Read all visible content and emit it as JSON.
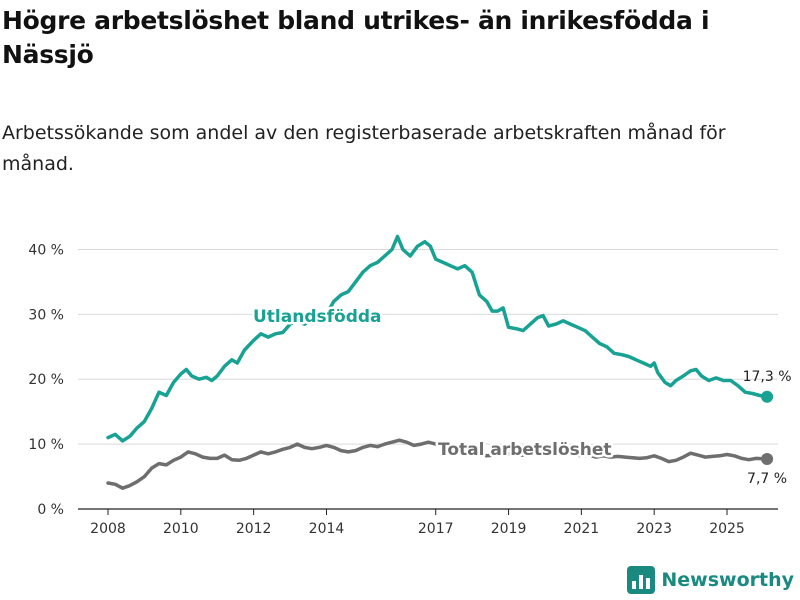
{
  "header": {
    "title": "Högre arbetslöshet bland utrikes- än inrikesfödda i Nässjö",
    "subtitle": "Arbetssökande som andel av den registerbaserade arbetskraften månad för månad."
  },
  "brand": {
    "name": "Newsworthy",
    "color": "#1a8a80"
  },
  "chart_data": {
    "type": "line",
    "title": "Högre arbetslöshet bland utrikes- än inrikesfödda i Nässjö",
    "subtitle": "Arbetssökande som andel av den registerbaserade arbetskraften månad för månad.",
    "xlabel": "",
    "ylabel": "",
    "xlim": [
      2008,
      2026.4
    ],
    "ylim": [
      0,
      43
    ],
    "x_ticks": [
      2008,
      2010,
      2012,
      2014,
      2017,
      2019,
      2021,
      2023,
      2025
    ],
    "y_ticks": [
      {
        "value": 0,
        "label": "0 %"
      },
      {
        "value": 10,
        "label": "10 %"
      },
      {
        "value": 20,
        "label": "20 %"
      },
      {
        "value": 30,
        "label": "30 %"
      },
      {
        "value": 40,
        "label": "40 %"
      }
    ],
    "grid": "horizontal",
    "series": [
      {
        "name": "Utlandsfödda",
        "label": "Utlandsfödda",
        "color": "#17a293",
        "end_label": "17,3 %",
        "points": [
          [
            2008.0,
            11.0
          ],
          [
            2008.2,
            11.5
          ],
          [
            2008.4,
            10.5
          ],
          [
            2008.6,
            11.2
          ],
          [
            2008.8,
            12.5
          ],
          [
            2009.0,
            13.5
          ],
          [
            2009.2,
            15.5
          ],
          [
            2009.4,
            18.0
          ],
          [
            2009.6,
            17.5
          ],
          [
            2009.8,
            19.5
          ],
          [
            2010.0,
            20.8
          ],
          [
            2010.15,
            21.5
          ],
          [
            2010.3,
            20.5
          ],
          [
            2010.5,
            20.0
          ],
          [
            2010.7,
            20.3
          ],
          [
            2010.85,
            19.8
          ],
          [
            2011.0,
            20.5
          ],
          [
            2011.2,
            22.0
          ],
          [
            2011.4,
            23.0
          ],
          [
            2011.55,
            22.5
          ],
          [
            2011.75,
            24.5
          ],
          [
            2012.0,
            26.0
          ],
          [
            2012.2,
            27.0
          ],
          [
            2012.4,
            26.5
          ],
          [
            2012.6,
            27.0
          ],
          [
            2012.8,
            27.2
          ],
          [
            2013.0,
            28.5
          ],
          [
            2013.2,
            29.0
          ],
          [
            2013.4,
            28.5
          ],
          [
            2013.6,
            29.2
          ],
          [
            2013.8,
            28.8
          ],
          [
            2014.0,
            30.0
          ],
          [
            2014.2,
            32.0
          ],
          [
            2014.4,
            33.0
          ],
          [
            2014.6,
            33.5
          ],
          [
            2014.8,
            35.0
          ],
          [
            2015.0,
            36.5
          ],
          [
            2015.2,
            37.5
          ],
          [
            2015.4,
            38.0
          ],
          [
            2015.6,
            39.0
          ],
          [
            2015.8,
            40.0
          ],
          [
            2015.95,
            42.0
          ],
          [
            2016.1,
            40.0
          ],
          [
            2016.3,
            39.0
          ],
          [
            2016.5,
            40.5
          ],
          [
            2016.7,
            41.2
          ],
          [
            2016.85,
            40.5
          ],
          [
            2017.0,
            38.5
          ],
          [
            2017.2,
            38.0
          ],
          [
            2017.4,
            37.5
          ],
          [
            2017.6,
            37.0
          ],
          [
            2017.8,
            37.5
          ],
          [
            2018.0,
            36.5
          ],
          [
            2018.2,
            33.0
          ],
          [
            2018.4,
            32.0
          ],
          [
            2018.55,
            30.5
          ],
          [
            2018.7,
            30.5
          ],
          [
            2018.85,
            31.0
          ],
          [
            2019.0,
            28.0
          ],
          [
            2019.2,
            27.8
          ],
          [
            2019.4,
            27.5
          ],
          [
            2019.6,
            28.5
          ],
          [
            2019.8,
            29.5
          ],
          [
            2019.95,
            29.8
          ],
          [
            2020.1,
            28.2
          ],
          [
            2020.3,
            28.5
          ],
          [
            2020.5,
            29.0
          ],
          [
            2020.7,
            28.5
          ],
          [
            2020.9,
            28.0
          ],
          [
            2021.1,
            27.5
          ],
          [
            2021.3,
            26.5
          ],
          [
            2021.5,
            25.5
          ],
          [
            2021.7,
            25.0
          ],
          [
            2021.9,
            24.0
          ],
          [
            2022.1,
            23.8
          ],
          [
            2022.3,
            23.5
          ],
          [
            2022.5,
            23.0
          ],
          [
            2022.7,
            22.5
          ],
          [
            2022.9,
            22.0
          ],
          [
            2023.0,
            22.5
          ],
          [
            2023.1,
            21.0
          ],
          [
            2023.3,
            19.5
          ],
          [
            2023.45,
            19.0
          ],
          [
            2023.6,
            19.8
          ],
          [
            2023.8,
            20.5
          ],
          [
            2024.0,
            21.3
          ],
          [
            2024.15,
            21.5
          ],
          [
            2024.3,
            20.5
          ],
          [
            2024.5,
            19.8
          ],
          [
            2024.7,
            20.2
          ],
          [
            2024.9,
            19.8
          ],
          [
            2025.1,
            19.8
          ],
          [
            2025.3,
            19.0
          ],
          [
            2025.5,
            18.0
          ],
          [
            2025.7,
            17.8
          ],
          [
            2025.9,
            17.5
          ],
          [
            2026.1,
            17.3
          ]
        ]
      },
      {
        "name": "Total arbetslöshet",
        "label": "Total arbetslöshet",
        "color": "#6e6e6e",
        "end_label": "7,7 %",
        "points": [
          [
            2008.0,
            4.0
          ],
          [
            2008.2,
            3.8
          ],
          [
            2008.4,
            3.2
          ],
          [
            2008.6,
            3.6
          ],
          [
            2008.8,
            4.2
          ],
          [
            2009.0,
            5.0
          ],
          [
            2009.2,
            6.3
          ],
          [
            2009.4,
            7.0
          ],
          [
            2009.6,
            6.8
          ],
          [
            2009.8,
            7.5
          ],
          [
            2010.0,
            8.0
          ],
          [
            2010.2,
            8.8
          ],
          [
            2010.4,
            8.5
          ],
          [
            2010.6,
            8.0
          ],
          [
            2010.8,
            7.8
          ],
          [
            2011.0,
            7.8
          ],
          [
            2011.2,
            8.3
          ],
          [
            2011.4,
            7.6
          ],
          [
            2011.6,
            7.5
          ],
          [
            2011.8,
            7.8
          ],
          [
            2012.0,
            8.3
          ],
          [
            2012.2,
            8.8
          ],
          [
            2012.4,
            8.5
          ],
          [
            2012.6,
            8.8
          ],
          [
            2012.8,
            9.2
          ],
          [
            2013.0,
            9.5
          ],
          [
            2013.2,
            10.0
          ],
          [
            2013.4,
            9.5
          ],
          [
            2013.6,
            9.3
          ],
          [
            2013.8,
            9.5
          ],
          [
            2014.0,
            9.8
          ],
          [
            2014.2,
            9.5
          ],
          [
            2014.4,
            9.0
          ],
          [
            2014.6,
            8.8
          ],
          [
            2014.8,
            9.0
          ],
          [
            2015.0,
            9.5
          ],
          [
            2015.2,
            9.8
          ],
          [
            2015.4,
            9.6
          ],
          [
            2015.6,
            10.0
          ],
          [
            2015.8,
            10.3
          ],
          [
            2016.0,
            10.6
          ],
          [
            2016.2,
            10.3
          ],
          [
            2016.4,
            9.8
          ],
          [
            2016.6,
            10.0
          ],
          [
            2016.8,
            10.3
          ],
          [
            2017.0,
            10.0
          ],
          [
            2017.2,
            9.8
          ],
          [
            2017.4,
            9.5
          ],
          [
            2017.6,
            9.2
          ],
          [
            2017.8,
            9.0
          ],
          [
            2018.0,
            8.8
          ],
          [
            2018.2,
            8.5
          ],
          [
            2018.4,
            8.2
          ],
          [
            2018.6,
            8.3
          ],
          [
            2018.8,
            8.6
          ],
          [
            2019.0,
            8.5
          ],
          [
            2019.2,
            8.3
          ],
          [
            2019.4,
            8.3
          ],
          [
            2019.6,
            8.6
          ],
          [
            2019.8,
            8.8
          ],
          [
            2020.0,
            8.8
          ],
          [
            2020.2,
            8.6
          ],
          [
            2020.4,
            8.5
          ],
          [
            2020.6,
            8.6
          ],
          [
            2020.8,
            8.4
          ],
          [
            2021.0,
            8.2
          ],
          [
            2021.2,
            8.3
          ],
          [
            2021.4,
            8.0
          ],
          [
            2021.6,
            8.2
          ],
          [
            2021.8,
            8.0
          ],
          [
            2022.0,
            8.1
          ],
          [
            2022.2,
            8.0
          ],
          [
            2022.4,
            7.9
          ],
          [
            2022.6,
            7.8
          ],
          [
            2022.8,
            7.9
          ],
          [
            2023.0,
            8.2
          ],
          [
            2023.2,
            7.8
          ],
          [
            2023.4,
            7.3
          ],
          [
            2023.6,
            7.5
          ],
          [
            2023.8,
            8.0
          ],
          [
            2024.0,
            8.6
          ],
          [
            2024.2,
            8.3
          ],
          [
            2024.4,
            8.0
          ],
          [
            2024.6,
            8.1
          ],
          [
            2024.8,
            8.2
          ],
          [
            2025.0,
            8.4
          ],
          [
            2025.2,
            8.2
          ],
          [
            2025.4,
            7.8
          ],
          [
            2025.6,
            7.6
          ],
          [
            2025.8,
            7.8
          ],
          [
            2026.1,
            7.7
          ]
        ]
      }
    ]
  }
}
